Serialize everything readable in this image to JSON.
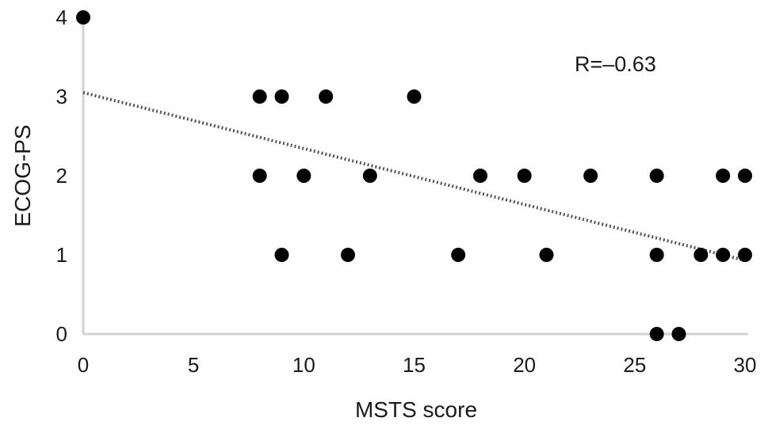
{
  "chart_data": {
    "type": "scatter",
    "title": "",
    "xlabel": "MSTS score",
    "ylabel": "ECOG-PS",
    "xlim": [
      0,
      30
    ],
    "ylim": [
      0,
      4
    ],
    "x_ticks": [
      "0",
      "5",
      "10",
      "15",
      "20",
      "25",
      "30"
    ],
    "y_ticks": [
      "0",
      "1",
      "2",
      "3",
      "4"
    ],
    "grid": false,
    "points": [
      {
        "x": 0,
        "y": 4
      },
      {
        "x": 8,
        "y": 3
      },
      {
        "x": 9,
        "y": 3
      },
      {
        "x": 11,
        "y": 3
      },
      {
        "x": 15,
        "y": 3
      },
      {
        "x": 8,
        "y": 2
      },
      {
        "x": 10,
        "y": 2
      },
      {
        "x": 13,
        "y": 2
      },
      {
        "x": 18,
        "y": 2
      },
      {
        "x": 20,
        "y": 2
      },
      {
        "x": 23,
        "y": 2
      },
      {
        "x": 26,
        "y": 2
      },
      {
        "x": 29,
        "y": 2
      },
      {
        "x": 30,
        "y": 2
      },
      {
        "x": 9,
        "y": 1
      },
      {
        "x": 12,
        "y": 1
      },
      {
        "x": 17,
        "y": 1
      },
      {
        "x": 21,
        "y": 1
      },
      {
        "x": 26,
        "y": 1
      },
      {
        "x": 28,
        "y": 1
      },
      {
        "x": 29,
        "y": 1
      },
      {
        "x": 30,
        "y": 1
      },
      {
        "x": 26,
        "y": 0
      },
      {
        "x": 27,
        "y": 0
      }
    ],
    "trendline": {
      "x": [
        0,
        30
      ],
      "y": [
        3.05,
        0.93
      ],
      "style": "dotted"
    },
    "annotation": "R=–0.63",
    "colors": {
      "points": "#000000",
      "axes": "#d3d3d3",
      "trendline": "#555555"
    }
  }
}
